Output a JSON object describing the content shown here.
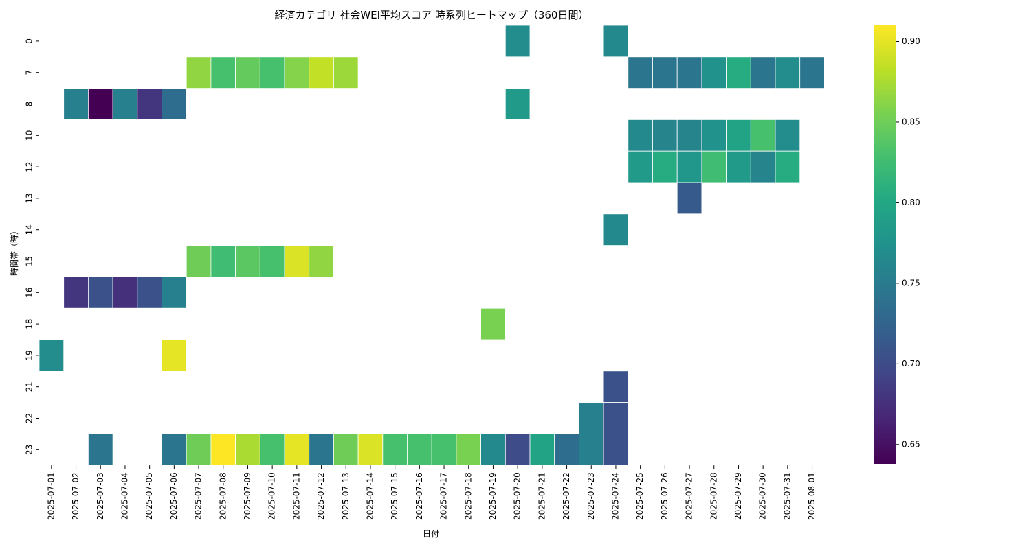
{
  "chart_data": {
    "type": "heatmap",
    "title": "経済カテゴリ 社会WEI平均スコア 時系列ヒートマップ（360日間）",
    "xlabel": "日付",
    "ylabel": "時間帯（時）",
    "colormap": "viridis",
    "vmin": 0.638,
    "vmax": 0.91,
    "colorbar_ticks": [
      "0.65",
      "0.70",
      "0.75",
      "0.80",
      "0.85",
      "0.90"
    ],
    "colorbar_tick_values": [
      0.65,
      0.7,
      0.75,
      0.8,
      0.85,
      0.9
    ],
    "grid_lines": "white",
    "x": [
      "2025-07-01",
      "2025-07-02",
      "2025-07-03",
      "2025-07-04",
      "2025-07-05",
      "2025-07-06",
      "2025-07-07",
      "2025-07-08",
      "2025-07-09",
      "2025-07-10",
      "2025-07-11",
      "2025-07-12",
      "2025-07-13",
      "2025-07-14",
      "2025-07-15",
      "2025-07-16",
      "2025-07-17",
      "2025-07-18",
      "2025-07-19",
      "2025-07-20",
      "2025-07-21",
      "2025-07-22",
      "2025-07-23",
      "2025-07-24",
      "2025-07-25",
      "2025-07-26",
      "2025-07-27",
      "2025-07-28",
      "2025-07-29",
      "2025-07-30",
      "2025-07-31",
      "2025-08-01"
    ],
    "y": [
      "0",
      "7",
      "8",
      "10",
      "12",
      "13",
      "14",
      "15",
      "16",
      "18",
      "19",
      "21",
      "22",
      "23"
    ],
    "values": [
      [
        null,
        null,
        null,
        null,
        null,
        null,
        null,
        null,
        null,
        null,
        null,
        null,
        null,
        null,
        null,
        null,
        null,
        null,
        null,
        0.77,
        null,
        null,
        null,
        0.765,
        null,
        null,
        null,
        null,
        null,
        null,
        null,
        null
      ],
      [
        null,
        null,
        null,
        null,
        null,
        null,
        0.865,
        0.83,
        0.845,
        0.83,
        0.86,
        0.885,
        0.87,
        null,
        null,
        null,
        null,
        null,
        null,
        null,
        null,
        null,
        null,
        null,
        0.745,
        0.745,
        0.745,
        0.775,
        0.805,
        0.745,
        0.77,
        0.745
      ],
      [
        null,
        0.755,
        0.638,
        0.755,
        0.68,
        0.735,
        null,
        null,
        null,
        null,
        null,
        null,
        null,
        null,
        null,
        null,
        null,
        null,
        null,
        0.785,
        null,
        null,
        null,
        null,
        null,
        null,
        null,
        null,
        null,
        null,
        null,
        null
      ],
      [
        null,
        null,
        null,
        null,
        null,
        null,
        null,
        null,
        null,
        null,
        null,
        null,
        null,
        null,
        null,
        null,
        null,
        null,
        null,
        null,
        null,
        null,
        null,
        null,
        0.765,
        0.76,
        0.76,
        0.775,
        0.795,
        0.83,
        0.77,
        null
      ],
      [
        null,
        null,
        null,
        null,
        null,
        null,
        null,
        null,
        null,
        null,
        null,
        null,
        null,
        null,
        null,
        null,
        null,
        null,
        null,
        null,
        null,
        null,
        null,
        null,
        0.785,
        0.805,
        0.78,
        0.825,
        0.785,
        0.76,
        0.805,
        null
      ],
      [
        null,
        null,
        null,
        null,
        null,
        null,
        null,
        null,
        null,
        null,
        null,
        null,
        null,
        null,
        null,
        null,
        null,
        null,
        null,
        null,
        null,
        null,
        null,
        null,
        null,
        null,
        0.715,
        null,
        null,
        null,
        null,
        null
      ],
      [
        null,
        null,
        null,
        null,
        null,
        null,
        null,
        null,
        null,
        null,
        null,
        null,
        null,
        null,
        null,
        null,
        null,
        null,
        null,
        null,
        null,
        null,
        null,
        0.765,
        null,
        null,
        null,
        null,
        null,
        null,
        null,
        null
      ],
      [
        null,
        null,
        null,
        null,
        null,
        null,
        0.85,
        0.825,
        0.84,
        0.83,
        0.895,
        0.865,
        null,
        null,
        null,
        null,
        null,
        null,
        null,
        null,
        null,
        null,
        null,
        null,
        null,
        null,
        null,
        null,
        null,
        null,
        null,
        null
      ],
      [
        null,
        0.68,
        0.705,
        0.675,
        0.705,
        0.755,
        null,
        null,
        null,
        null,
        null,
        null,
        null,
        null,
        null,
        null,
        null,
        null,
        null,
        null,
        null,
        null,
        null,
        null,
        null,
        null,
        null,
        null,
        null,
        null,
        null,
        null
      ],
      [
        null,
        null,
        null,
        null,
        null,
        null,
        null,
        null,
        null,
        null,
        null,
        null,
        null,
        null,
        null,
        null,
        null,
        null,
        0.855,
        null,
        null,
        null,
        null,
        null,
        null,
        null,
        null,
        null,
        null,
        null,
        null,
        null
      ],
      [
        0.77,
        null,
        null,
        null,
        null,
        0.9,
        null,
        null,
        null,
        null,
        null,
        null,
        null,
        null,
        null,
        null,
        null,
        null,
        null,
        null,
        null,
        null,
        null,
        null,
        null,
        null,
        null,
        null,
        null,
        null,
        null,
        null
      ],
      [
        null,
        null,
        null,
        null,
        null,
        null,
        null,
        null,
        null,
        null,
        null,
        null,
        null,
        null,
        null,
        null,
        null,
        null,
        null,
        null,
        null,
        null,
        null,
        0.705,
        null,
        null,
        null,
        null,
        null,
        null,
        null,
        null
      ],
      [
        null,
        null,
        null,
        null,
        null,
        null,
        null,
        null,
        null,
        null,
        null,
        null,
        null,
        null,
        null,
        null,
        null,
        null,
        null,
        null,
        null,
        null,
        0.755,
        0.705,
        null,
        null,
        null,
        null,
        null,
        null,
        null,
        null
      ],
      [
        null,
        null,
        0.745,
        null,
        null,
        0.745,
        0.85,
        0.91,
        0.875,
        0.83,
        0.9,
        0.745,
        0.85,
        0.895,
        0.83,
        0.83,
        0.83,
        0.855,
        0.765,
        0.7,
        0.795,
        0.735,
        0.755,
        0.705,
        null,
        null,
        null,
        null,
        null,
        null,
        null,
        null
      ]
    ]
  }
}
